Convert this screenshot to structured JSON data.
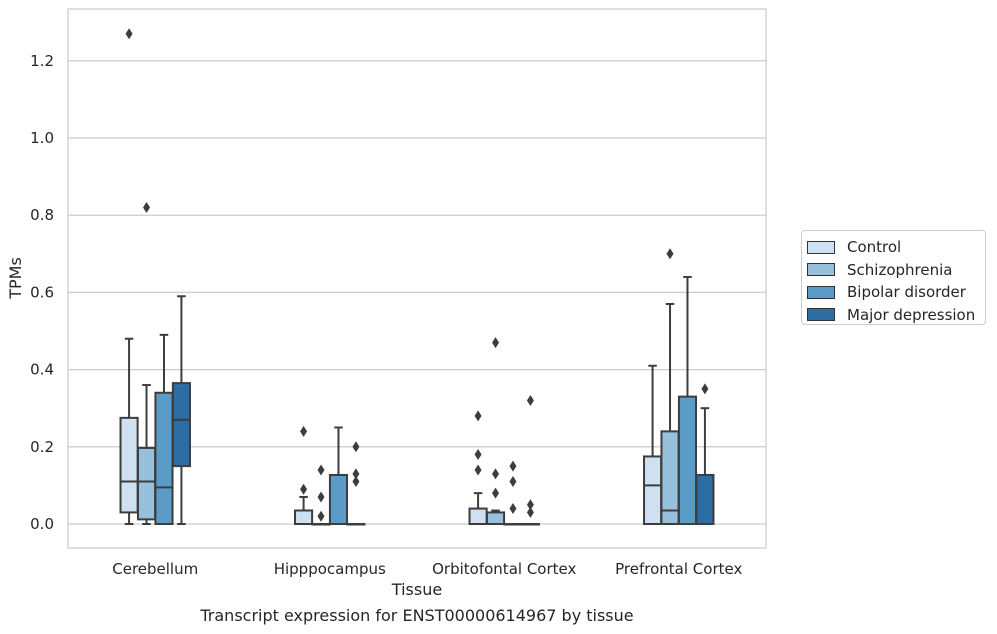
{
  "chart_data": {
    "type": "box",
    "title": "",
    "caption": "Transcript expression for ENST00000614967 by tissue",
    "xlabel": "Tissue",
    "ylabel": "TPMs",
    "ylim": [
      -0.06,
      1.33
    ],
    "yticks": [
      0.0,
      0.2,
      0.4,
      0.6,
      0.8,
      1.0,
      1.2
    ],
    "ytick_labels": [
      "0.0",
      "0.2",
      "0.4",
      "0.6",
      "0.8",
      "1.0",
      "1.2"
    ],
    "grid": "horizontal",
    "legend_position": "right",
    "categories": [
      "Cerebellum",
      "Hipppocampus",
      "Orbitofontal Cortex",
      "Prefrontal Cortex"
    ],
    "series": [
      {
        "name": "Control",
        "color": "#cfe0f0",
        "boxes": [
          {
            "whislo": 0.0,
            "q1": 0.03,
            "med": 0.11,
            "q3": 0.275,
            "whishi": 0.48,
            "fliers": [
              1.27
            ]
          },
          {
            "whislo": 0.0,
            "q1": 0.0,
            "med": 0.0,
            "q3": 0.035,
            "whishi": 0.07,
            "fliers": [
              0.09,
              0.24
            ]
          },
          {
            "whislo": 0.0,
            "q1": 0.0,
            "med": 0.0,
            "q3": 0.04,
            "whishi": 0.08,
            "fliers": [
              0.14,
              0.18,
              0.28
            ]
          },
          {
            "whislo": 0.0,
            "q1": 0.0,
            "med": 0.1,
            "q3": 0.175,
            "whishi": 0.41,
            "fliers": []
          }
        ]
      },
      {
        "name": "Schizophrenia",
        "color": "#96c0dc",
        "boxes": [
          {
            "whislo": 0.0,
            "q1": 0.012,
            "med": 0.11,
            "q3": 0.197,
            "whishi": 0.36,
            "fliers": [
              0.82
            ]
          },
          {
            "whislo": 0.0,
            "q1": 0.0,
            "med": 0.0,
            "q3": 0.0,
            "whishi": 0.0,
            "fliers": [
              0.02,
              0.07,
              0.14
            ]
          },
          {
            "whislo": 0.0,
            "q1": 0.0,
            "med": 0.0,
            "q3": 0.03,
            "whishi": 0.035,
            "fliers": [
              0.08,
              0.13,
              0.47
            ]
          },
          {
            "whislo": 0.0,
            "q1": 0.0,
            "med": 0.035,
            "q3": 0.24,
            "whishi": 0.57,
            "fliers": [
              0.7
            ]
          }
        ]
      },
      {
        "name": "Bipolar disorder",
        "color": "#5b9bc8",
        "boxes": [
          {
            "whislo": 0.0,
            "q1": 0.0,
            "med": 0.095,
            "q3": 0.34,
            "whishi": 0.49,
            "fliers": []
          },
          {
            "whislo": 0.0,
            "q1": 0.0,
            "med": 0.0,
            "q3": 0.127,
            "whishi": 0.25,
            "fliers": []
          },
          {
            "whislo": 0.0,
            "q1": 0.0,
            "med": 0.0,
            "q3": 0.0,
            "whishi": 0.0,
            "fliers": [
              0.04,
              0.11,
              0.15
            ]
          },
          {
            "whislo": 0.0,
            "q1": 0.0,
            "med": 0.0,
            "q3": 0.33,
            "whishi": 0.64,
            "fliers": []
          }
        ]
      },
      {
        "name": "Major depression",
        "color": "#2e6ca4",
        "boxes": [
          {
            "whislo": 0.0,
            "q1": 0.15,
            "med": 0.27,
            "q3": 0.365,
            "whishi": 0.59,
            "fliers": []
          },
          {
            "whislo": 0.0,
            "q1": 0.0,
            "med": 0.0,
            "q3": 0.0,
            "whishi": 0.0,
            "fliers": [
              0.11,
              0.13,
              0.2
            ]
          },
          {
            "whislo": 0.0,
            "q1": 0.0,
            "med": 0.0,
            "q3": 0.0,
            "whishi": 0.0,
            "fliers": [
              0.03,
              0.05,
              0.32
            ]
          },
          {
            "whislo": 0.0,
            "q1": 0.0,
            "med": 0.0,
            "q3": 0.127,
            "whishi": 0.3,
            "fliers": [
              0.35
            ]
          }
        ]
      }
    ]
  }
}
